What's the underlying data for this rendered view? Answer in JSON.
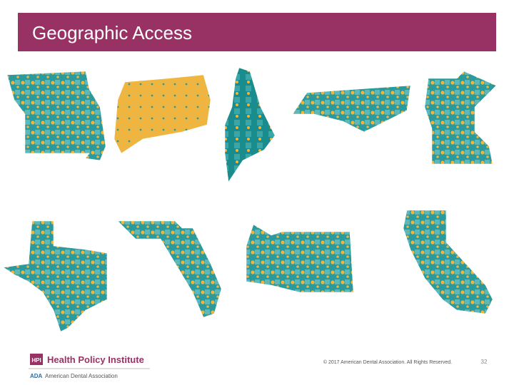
{
  "header": {
    "title": "Geographic Access"
  },
  "footer": {
    "hpi_badge": "HPI",
    "institute": "Health Policy Institute",
    "ada_badge": "ADA",
    "association": "American Dental Association",
    "copyright": "© 2017 American Dental Association. All Rights Reserved.",
    "page_number": "32"
  }
}
